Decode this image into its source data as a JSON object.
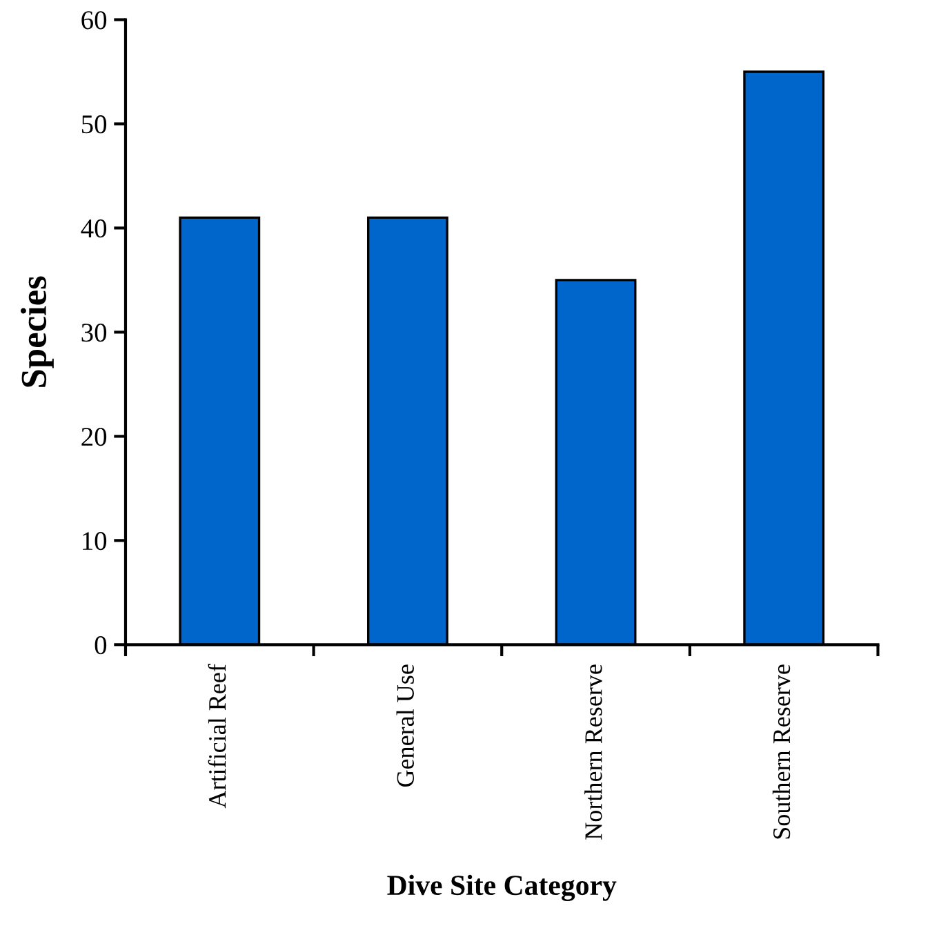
{
  "chart_data": {
    "type": "bar",
    "xlabel": "Dive Site Category",
    "ylabel": "Species",
    "categories": [
      "Artificial Reef",
      "General Use",
      "Northern Reserve",
      "Southern Reserve"
    ],
    "values": [
      41,
      41,
      35,
      55
    ],
    "color": "#0066cc",
    "ylim": [
      0,
      60
    ],
    "yticks": [
      0,
      10,
      20,
      30,
      40,
      50,
      60
    ],
    "grid": false,
    "legend": false
  }
}
